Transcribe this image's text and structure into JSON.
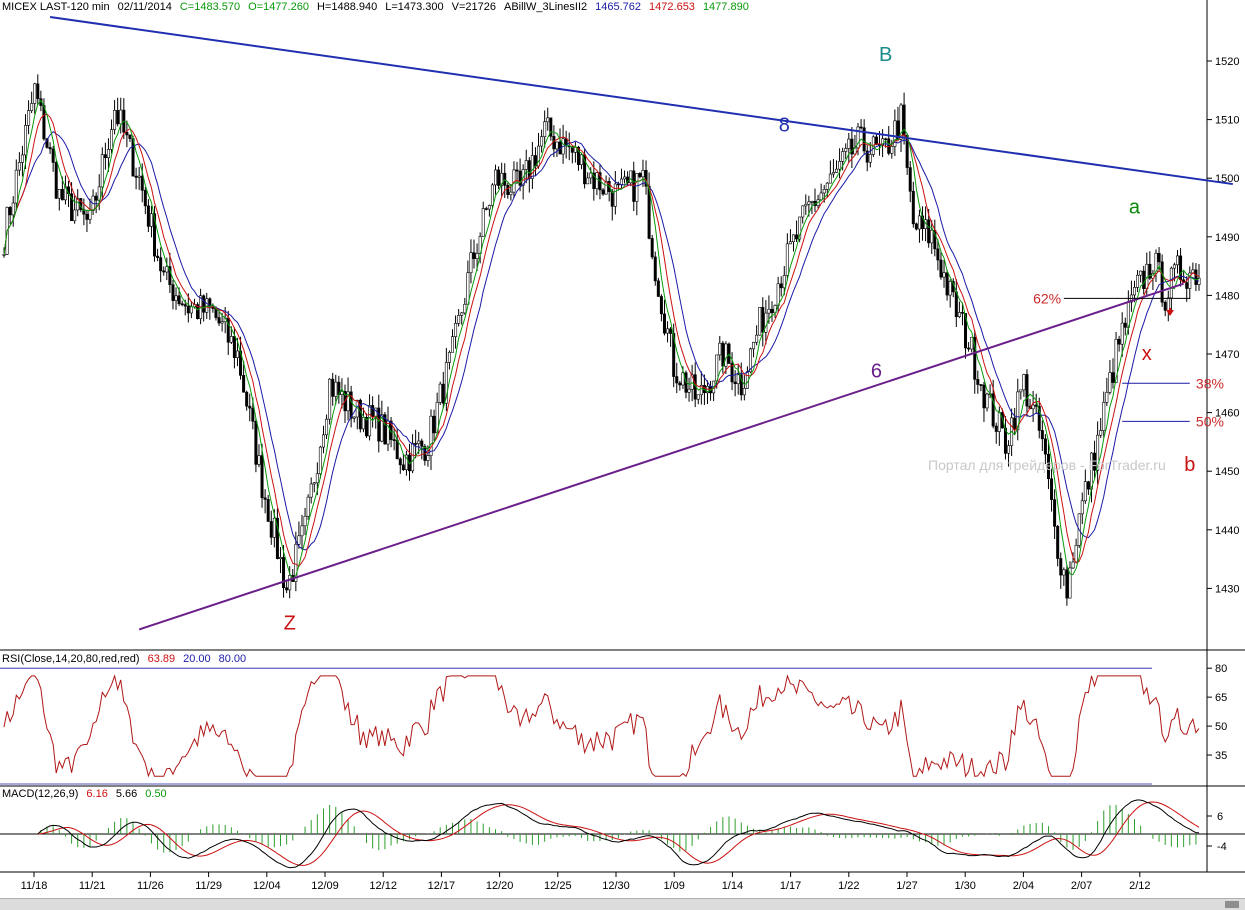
{
  "header": {
    "symbol": "MICEX LAST-120 min",
    "date": "02/11/2014",
    "close": "C=1483.570",
    "open": "O=1477.260",
    "high": "H=1488.940",
    "low": "L=1473.300",
    "volume": "V=21726",
    "indicator": "ABillW_3LinesII2",
    "line_blue": "1465.762",
    "line_red": "1472.653",
    "line_green": "1477.890"
  },
  "colors": {
    "blue": "#1a1aa6",
    "red": "#cc1111",
    "green": "#0a9a0a",
    "trend_blue": "#1f2fb0",
    "trend_purple": "#6a1f8a",
    "fib": "#cc2a2a",
    "rsi": "#b01818",
    "macd_hist": "#2e9e2e"
  },
  "chart_data": [
    {
      "type": "candlestick",
      "title": "MICEX LAST-120 min",
      "x_labels": [
        "11/18",
        "11/21",
        "11/26",
        "11/29",
        "12/04",
        "12/09",
        "12/12",
        "12/17",
        "12/20",
        "12/25",
        "12/30",
        "1/09",
        "1/14",
        "1/17",
        "1/22",
        "1/27",
        "1/30",
        "2/04",
        "2/07",
        "2/12"
      ],
      "y_ticks": [
        1430,
        1440,
        1450,
        1460,
        1470,
        1480,
        1490,
        1500,
        1510,
        1520
      ],
      "ylim": [
        1420,
        1530
      ],
      "anchor_path": [
        {
          "x": 0,
          "y": 1490
        },
        {
          "x": 10,
          "y": 1515
        },
        {
          "x": 18,
          "y": 1497
        },
        {
          "x": 28,
          "y": 1492
        },
        {
          "x": 36,
          "y": 1512
        },
        {
          "x": 44,
          "y": 1500
        },
        {
          "x": 52,
          "y": 1483
        },
        {
          "x": 60,
          "y": 1478
        },
        {
          "x": 68,
          "y": 1477
        },
        {
          "x": 76,
          "y": 1470
        },
        {
          "x": 84,
          "y": 1448
        },
        {
          "x": 92,
          "y": 1430
        },
        {
          "x": 98,
          "y": 1440
        },
        {
          "x": 106,
          "y": 1465
        },
        {
          "x": 114,
          "y": 1460
        },
        {
          "x": 122,
          "y": 1458
        },
        {
          "x": 130,
          "y": 1452
        },
        {
          "x": 138,
          "y": 1455
        },
        {
          "x": 146,
          "y": 1470
        },
        {
          "x": 152,
          "y": 1485
        },
        {
          "x": 160,
          "y": 1500
        },
        {
          "x": 168,
          "y": 1498
        },
        {
          "x": 176,
          "y": 1508
        },
        {
          "x": 184,
          "y": 1505
        },
        {
          "x": 192,
          "y": 1500
        },
        {
          "x": 200,
          "y": 1497
        },
        {
          "x": 208,
          "y": 1500
        },
        {
          "x": 212,
          "y": 1485
        },
        {
          "x": 218,
          "y": 1468
        },
        {
          "x": 226,
          "y": 1462
        },
        {
          "x": 234,
          "y": 1470
        },
        {
          "x": 240,
          "y": 1465
        },
        {
          "x": 246,
          "y": 1475
        },
        {
          "x": 254,
          "y": 1485
        },
        {
          "x": 262,
          "y": 1495
        },
        {
          "x": 270,
          "y": 1500
        },
        {
          "x": 278,
          "y": 1506
        },
        {
          "x": 286,
          "y": 1504
        },
        {
          "x": 292,
          "y": 1510
        },
        {
          "x": 296,
          "y": 1492
        },
        {
          "x": 302,
          "y": 1490
        },
        {
          "x": 308,
          "y": 1480
        },
        {
          "x": 314,
          "y": 1472
        },
        {
          "x": 320,
          "y": 1462
        },
        {
          "x": 326,
          "y": 1455
        },
        {
          "x": 332,
          "y": 1465
        },
        {
          "x": 338,
          "y": 1455
        },
        {
          "x": 342,
          "y": 1440
        },
        {
          "x": 346,
          "y": 1430
        },
        {
          "x": 350,
          "y": 1442
        },
        {
          "x": 356,
          "y": 1455
        },
        {
          "x": 362,
          "y": 1470
        },
        {
          "x": 368,
          "y": 1480
        },
        {
          "x": 374,
          "y": 1486
        },
        {
          "x": 378,
          "y": 1480
        },
        {
          "x": 382,
          "y": 1484
        }
      ],
      "indicators": [
        {
          "name": "blue",
          "period": 13
        },
        {
          "name": "red",
          "period": 8
        },
        {
          "name": "green",
          "period": 5
        }
      ],
      "trendlines": [
        {
          "name": "upper",
          "points": [
            {
              "x": 15,
              "y": 1527.5
            },
            {
              "x": 400,
              "y": 1499
            }
          ],
          "color": "blue"
        },
        {
          "name": "lower",
          "points": [
            {
              "x": 44,
              "y": 1423
            },
            {
              "x": 384,
              "y": 1482
            }
          ],
          "color": "purple"
        }
      ],
      "fib_levels": [
        {
          "label": "62%",
          "value": 1479.5
        },
        {
          "label": "38%",
          "value": 1465
        },
        {
          "label": "50%",
          "value": 1458.5
        }
      ],
      "annotations": [
        {
          "text": "Z",
          "x": 93,
          "y": 1423,
          "color": "#cc1111"
        },
        {
          "text": "B",
          "x": 287,
          "y": 1520,
          "color": "#1a8a8a"
        },
        {
          "text": "8",
          "x": 254,
          "y": 1508,
          "color": "#1f2fb0"
        },
        {
          "text": "6",
          "x": 284,
          "y": 1466,
          "color": "#6a1f8a"
        },
        {
          "text": "a",
          "x": 368,
          "y": 1494,
          "color": "#0a8a0a"
        },
        {
          "text": "x",
          "x": 372,
          "y": 1469,
          "color": "#cc1111"
        },
        {
          "text": "b",
          "x": 386,
          "y": 1450,
          "color": "#cc1111"
        }
      ],
      "watermark": "Портал для трейдеров - ForTrader.ru"
    },
    {
      "type": "line",
      "title": "RSI(Close,14,20,80,red,red)",
      "values_printed": [
        "63.89",
        "20.00",
        "80.00"
      ],
      "y_ticks": [
        35,
        50,
        65,
        80
      ],
      "levels": [
        20,
        80
      ],
      "ylim": [
        18,
        88
      ]
    },
    {
      "type": "line",
      "title": "MACD(12,26,9)",
      "values_printed": [
        "6.16",
        "5.66",
        "0.50"
      ],
      "y_ticks": [
        -4,
        6
      ],
      "series": [
        {
          "name": "MACD",
          "color": "black"
        },
        {
          "name": "signal",
          "color": "red"
        },
        {
          "name": "histogram",
          "color": "green"
        }
      ],
      "ylim": [
        -10,
        10
      ]
    }
  ]
}
